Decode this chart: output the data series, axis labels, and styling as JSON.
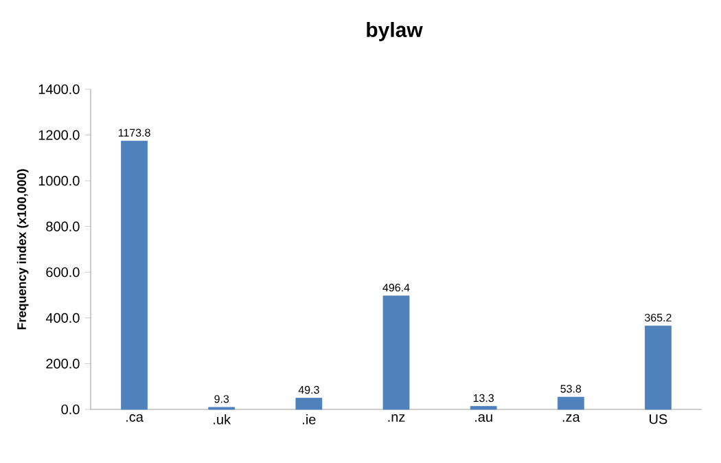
{
  "chart_data": {
    "type": "bar",
    "title": "bylaw",
    "ylabel": "Frequency index (x100,000)",
    "categories": [
      ".ca",
      ".uk",
      ".ie",
      ".nz",
      ".au",
      ".za",
      "US"
    ],
    "values": [
      1173.8,
      9.3,
      49.3,
      496.4,
      13.3,
      53.8,
      365.2
    ],
    "color": "#4f81bd",
    "data_labels": true,
    "ylim": [
      0,
      1400
    ],
    "yticks": [
      {
        "value": 0,
        "label": "0.0"
      },
      {
        "value": 200,
        "label": "200.0"
      },
      {
        "value": 400,
        "label": "400.0"
      },
      {
        "value": 600,
        "label": "600.0"
      },
      {
        "value": 800,
        "label": "800.0"
      },
      {
        "value": 1000,
        "label": "1000.0"
      },
      {
        "value": 1200,
        "label": "1200.0"
      },
      {
        "value": 1400,
        "label": "1400.0"
      }
    ]
  }
}
